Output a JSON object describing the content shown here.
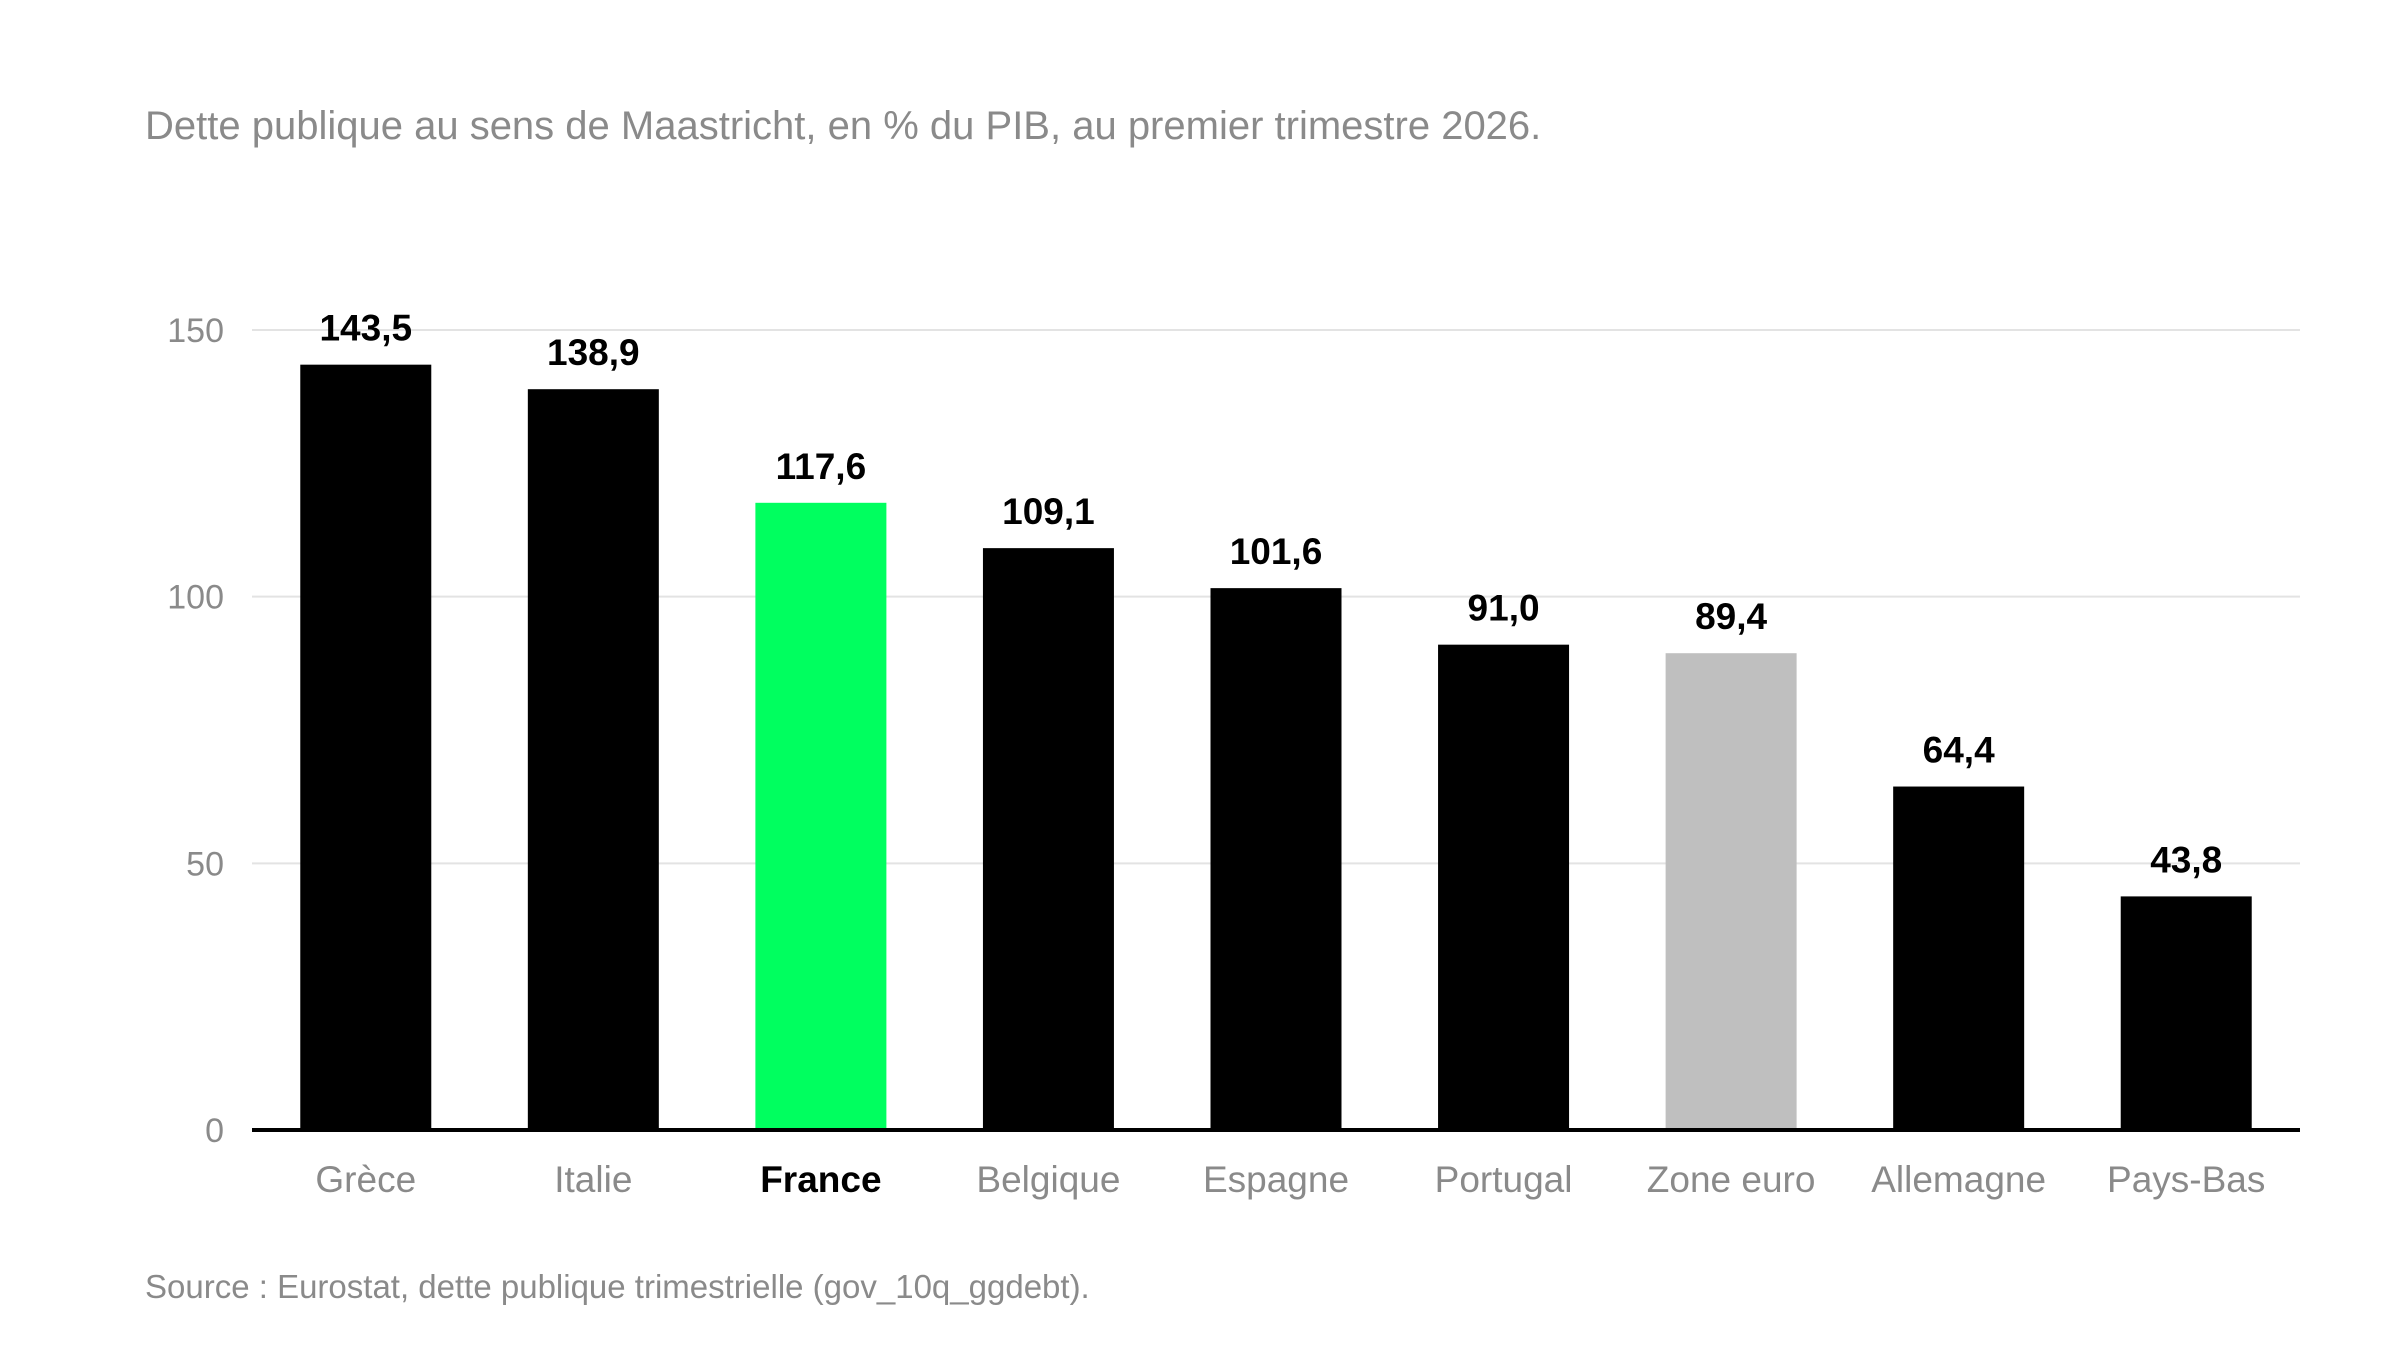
{
  "chart_data": {
    "type": "bar",
    "subtitle": "Dette publique au sens de Maastricht, en % du PIB, au premier trimestre 2026.",
    "source": "Source : Eurostat, dette publique trimestrielle (gov_10q_ggdebt).",
    "categories": [
      "Grèce",
      "Italie",
      "France",
      "Belgique",
      "Espagne",
      "Portugal",
      "Zone euro",
      "Allemagne",
      "Pays-Bas"
    ],
    "values": [
      143.5,
      138.9,
      117.6,
      109.1,
      101.6,
      91.0,
      89.4,
      64.4,
      43.8
    ],
    "value_labels": [
      "143,5",
      "138,9",
      "117,6",
      "109,1",
      "101,6",
      "91,0",
      "89,4",
      "64,4",
      "43,8"
    ],
    "highlight_category": "France",
    "bar_colors": [
      "#000000",
      "#000000",
      "#00ff5f",
      "#000000",
      "#000000",
      "#000000",
      "#bfbfbf",
      "#000000",
      "#000000"
    ],
    "y_ticks": [
      0,
      50,
      100,
      150
    ],
    "y_tick_labels": [
      "0",
      "50",
      "100",
      "150"
    ],
    "ylim": [
      0,
      150
    ],
    "grid": true,
    "xlabel": "",
    "ylabel": ""
  }
}
